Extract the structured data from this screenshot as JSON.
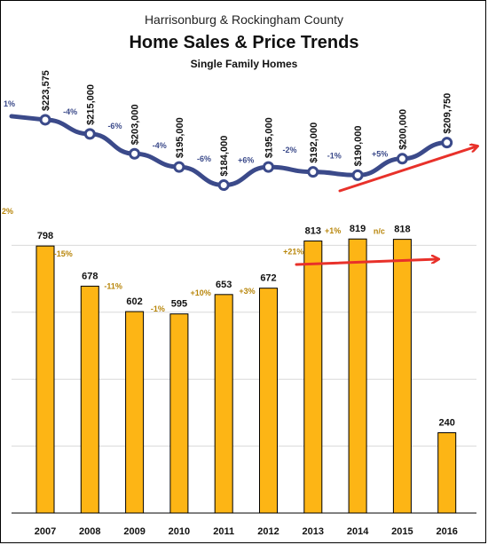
{
  "title": "Home Sales & Price Trends",
  "subtitle": "Harrisonburg & Rockingham County",
  "note": "Single Family Homes",
  "colors": {
    "bar": "#FDB515",
    "bar_outline": "#000000",
    "line": "#3B4A8A",
    "arrow": "#E8312A",
    "price_pct": "#3B4A8A",
    "sales_pct": "#B8860B",
    "grid": "#D9D9D9"
  },
  "chart_data": [
    {
      "type": "line",
      "name": "price",
      "x": [
        "2007",
        "2008",
        "2009",
        "2010",
        "2011",
        "2012",
        "2013",
        "2014",
        "2015",
        "2016"
      ],
      "values": [
        223575,
        215000,
        203000,
        195000,
        184000,
        195000,
        192000,
        190000,
        200000,
        209750
      ],
      "value_labels": [
        "$223,575",
        "$215,000",
        "$203,000",
        "$195,000",
        "$184,000",
        "$195,000",
        "$192,000",
        "$190,000",
        "$200,000",
        "$209,750"
      ],
      "pct_labels": [
        "1%",
        "-4%",
        "-6%",
        "-4%",
        "-6%",
        "+6%",
        "-2%",
        "-1%",
        "+5%",
        ""
      ],
      "trend_arrow": true
    },
    {
      "type": "bar",
      "name": "sales",
      "categories": [
        "2007",
        "2008",
        "2009",
        "2010",
        "2011",
        "2012",
        "2013",
        "2014",
        "2015",
        "2016"
      ],
      "values": [
        798,
        678,
        602,
        595,
        653,
        672,
        813,
        819,
        818,
        240
      ],
      "pct_labels": [
        "2%",
        "-15%",
        "-11%",
        "-1%",
        "+10%",
        "+3%",
        "+21%",
        "+1%",
        "n/c",
        ""
      ],
      "ylim": [
        0,
        1000
      ],
      "grid": true,
      "trend_arrow": true
    }
  ]
}
